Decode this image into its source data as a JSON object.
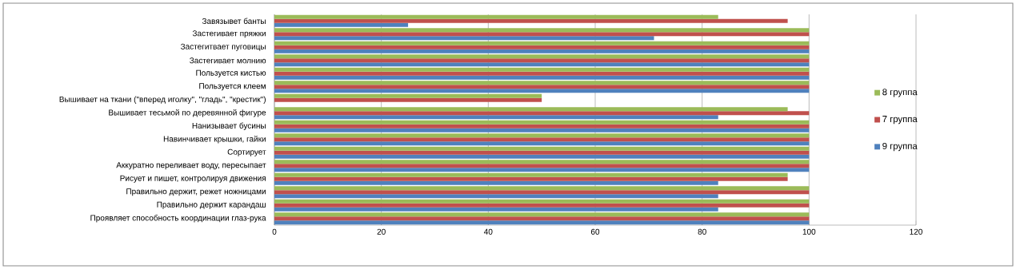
{
  "chart_data": {
    "type": "bar",
    "orientation": "horizontal",
    "categories": [
      "Завязывет банты",
      "Застегивает пряжки",
      "Застегитвает пуговицы",
      "Застегивает молнию",
      "Пользуется кистью",
      "Пользуется клеем",
      "Вышивает на ткани (\"вперед иголку\", \"гладь\", \"крестик\")",
      "Вышивает тесьмой по деревянной фигуре",
      "Нанизывает бусины",
      "Навинчивает крышки, гайки",
      "Сортирует",
      "Аккуратно переливает воду, пересыпает",
      "Рисует и пишет, контролируя движения",
      "Правильно держит, режет ножницами",
      "Правильно держит карандаш",
      "Проявляет способность координации глаз-рука"
    ],
    "series": [
      {
        "name": "8 группа",
        "color": "#9bbb59",
        "values": [
          83,
          100,
          100,
          100,
          100,
          100,
          50,
          96,
          100,
          100,
          100,
          100,
          96,
          100,
          100,
          100
        ]
      },
      {
        "name": "7 группа",
        "color": "#c0504d",
        "values": [
          96,
          100,
          100,
          100,
          100,
          100,
          50,
          100,
          100,
          100,
          100,
          100,
          96,
          100,
          100,
          100
        ]
      },
      {
        "name": "9 группа",
        "color": "#4f81bd",
        "values": [
          25,
          71,
          100,
          100,
          100,
          100,
          null,
          83,
          100,
          100,
          100,
          100,
          83,
          83,
          83,
          100
        ]
      }
    ],
    "xlim": [
      0,
      120
    ],
    "xticks": [
      0,
      20,
      40,
      60,
      80,
      100,
      120
    ],
    "grid": "x",
    "legend": "right"
  }
}
